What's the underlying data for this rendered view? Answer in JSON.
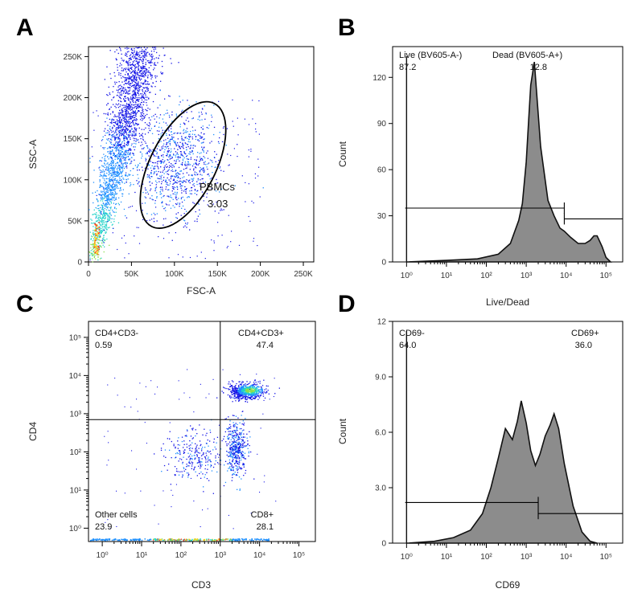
{
  "chart_data": [
    {
      "panel": "A",
      "type": "scatter",
      "xlabel": "FSC-A",
      "ylabel": "SSC-A",
      "xlim": [
        0,
        262144
      ],
      "ylim": [
        0,
        262144
      ],
      "x_ticks": [
        "0",
        "50K",
        "100K",
        "150K",
        "200K",
        "250K"
      ],
      "x_tick_values": [
        0,
        50000,
        100000,
        150000,
        200000,
        250000
      ],
      "y_ticks": [
        "0",
        "50K",
        "100K",
        "150K",
        "200K",
        "250K"
      ],
      "y_tick_values": [
        0,
        50000,
        100000,
        150000,
        200000,
        250000
      ],
      "gate": {
        "name": "PBMCs",
        "value": "3.03",
        "shape": "ellipse",
        "center": [
          110000,
          118000
        ],
        "radii": [
          38000,
          84000
        ],
        "rotation_deg": 27
      },
      "density_colors": [
        "#1515e6",
        "#1f8fff",
        "#22d3c8",
        "#8be04f",
        "#f2d21b",
        "#ff3b1f"
      ],
      "grid": false
    },
    {
      "panel": "B",
      "type": "area",
      "xlabel": "Live/Dead",
      "ylabel": "Count",
      "xscale": "biexponential",
      "x_ticks": [
        "10⁰",
        "10¹",
        "10²",
        "10³",
        "10⁴",
        "10⁵"
      ],
      "x_tick_values": [
        1,
        10,
        100,
        1000,
        10000,
        100000
      ],
      "y_ticks": [
        "0",
        "30",
        "60",
        "90",
        "120"
      ],
      "y_tick_values": [
        0,
        30,
        60,
        90,
        120
      ],
      "ylim": [
        0,
        140
      ],
      "series": [
        {
          "x": [
            0.98,
            1.1,
            10,
            60,
            200,
            400,
            650,
            800,
            1000,
            1150,
            1300,
            1600,
            2300,
            3500,
            5000,
            7000,
            9000,
            13000,
            20000,
            30000,
            40000,
            50000,
            60000,
            80000,
            100000,
            130000
          ],
          "values": [
            0,
            0,
            1,
            2,
            5,
            12,
            27,
            38,
            65,
            92,
            115,
            130,
            75,
            40,
            30,
            22,
            20,
            16,
            12,
            12,
            14,
            17,
            17,
            10,
            3,
            0
          ]
        }
      ],
      "gates": [
        {
          "name": "Live (BV605-A-)",
          "value": "87.2",
          "range": [
            0.9,
            9000
          ],
          "level": 35
        },
        {
          "name": "Dead (BV605-A+)",
          "value": "12.8",
          "range": [
            9000,
            262144
          ],
          "level": 28
        }
      ],
      "fill_color": "#8c8c8c",
      "grid": false
    },
    {
      "panel": "C",
      "type": "scatter",
      "xlabel": "CD3",
      "ylabel": "CD4",
      "xscale": "biexponential",
      "yscale": "biexponential",
      "x_ticks": [
        "10⁰",
        "10¹",
        "10²",
        "10³",
        "10⁴",
        "10⁵"
      ],
      "x_tick_values": [
        1,
        10,
        100,
        1000,
        10000,
        100000
      ],
      "y_ticks": [
        "10⁰",
        "10¹",
        "10²",
        "10³",
        "10⁴",
        "10⁵"
      ],
      "y_tick_values": [
        1,
        10,
        100,
        1000,
        10000,
        100000
      ],
      "quadrant_split": [
        1000,
        700
      ],
      "quadrants": [
        {
          "name": "CD4+CD3-",
          "value": "0.59",
          "position": "top-left"
        },
        {
          "name": "CD4+CD3+",
          "value": "47.4",
          "position": "top-right"
        },
        {
          "name": "Other cells",
          "value": "23.9",
          "position": "bottom-left"
        },
        {
          "name": "CD8+",
          "value": "28.1",
          "position": "bottom-right"
        }
      ],
      "density_colors": [
        "#1515e6",
        "#1f8fff",
        "#22d3c8",
        "#8be04f",
        "#f2d21b",
        "#ff3b1f"
      ],
      "grid": false
    },
    {
      "panel": "D",
      "type": "area",
      "xlabel": "CD69",
      "ylabel": "Count",
      "xscale": "biexponential",
      "x_ticks": [
        "10⁰",
        "10¹",
        "10²",
        "10³",
        "10⁴",
        "10⁵"
      ],
      "x_tick_values": [
        1,
        10,
        100,
        1000,
        10000,
        100000
      ],
      "y_ticks": [
        "0",
        "3.0",
        "6.0",
        "9.0",
        "12"
      ],
      "y_tick_values": [
        0,
        3,
        6,
        9,
        12
      ],
      "ylim": [
        0,
        12
      ],
      "series": [
        {
          "x": [
            0.98,
            1.1,
            5,
            15,
            40,
            80,
            130,
            200,
            300,
            450,
            600,
            750,
            1000,
            1300,
            1700,
            2200,
            3000,
            4000,
            5000,
            6500,
            9000,
            15000,
            25000,
            40000,
            60000
          ],
          "values": [
            0,
            0,
            0.1,
            0.3,
            0.7,
            1.6,
            3.0,
            4.6,
            6.2,
            5.6,
            6.6,
            7.7,
            6.5,
            5.0,
            4.2,
            4.8,
            5.8,
            6.4,
            7.0,
            6.2,
            4.3,
            2.0,
            0.6,
            0.1,
            0
          ]
        }
      ],
      "gates": [
        {
          "name": "CD69-",
          "value": "64.0",
          "range": [
            0.9,
            2000
          ],
          "level": 2.2
        },
        {
          "name": "CD69+",
          "value": "36.0",
          "range": [
            2000,
            262144
          ],
          "level": 1.6
        }
      ],
      "fill_color": "#8c8c8c",
      "grid": false
    }
  ],
  "panel_labels": [
    "A",
    "B",
    "C",
    "D"
  ]
}
